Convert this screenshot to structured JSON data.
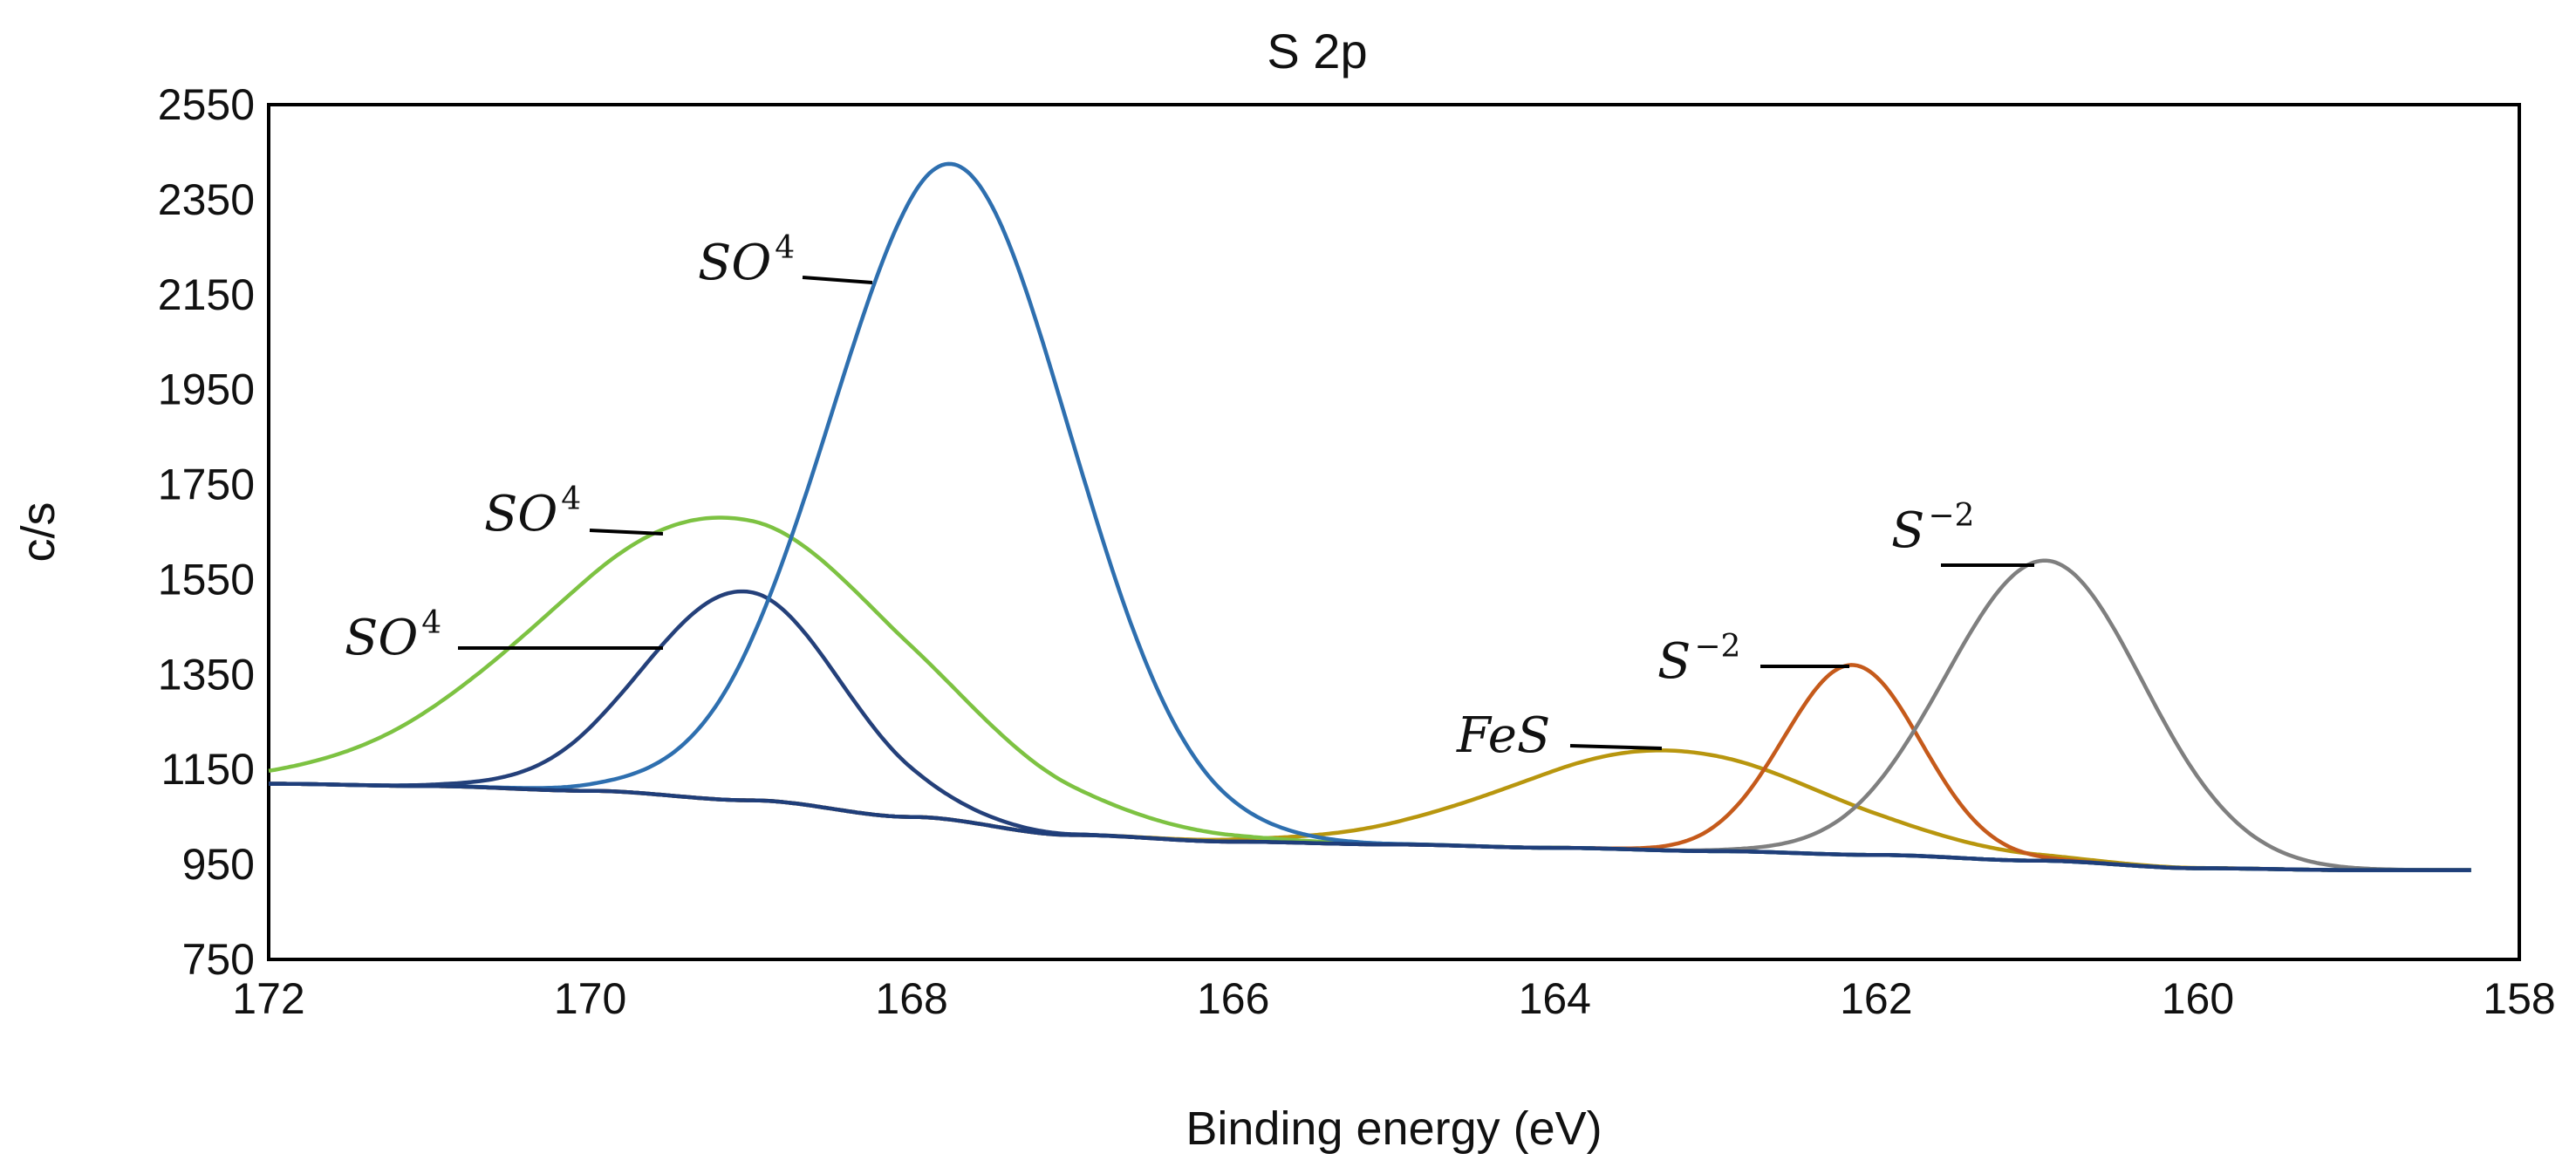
{
  "chart_data": {
    "type": "line",
    "title": "S 2p",
    "xlabel": "Binding energy (eV)",
    "ylabel": "c/s",
    "xlim": [
      172,
      158
    ],
    "ylim": [
      750,
      2550
    ],
    "x_ticks": [
      "172",
      "170",
      "168",
      "166",
      "164",
      "162",
      "160",
      "158"
    ],
    "y_ticks": [
      "750",
      "950",
      "1150",
      "1350",
      "1550",
      "1750",
      "1950",
      "2150",
      "2350",
      "2550"
    ],
    "x_reversed": true,
    "grid": false,
    "legend": "none",
    "background": {
      "points": [
        [
          172.0,
          1120
        ],
        [
          171.0,
          1115
        ],
        [
          170.0,
          1105
        ],
        [
          169.0,
          1085
        ],
        [
          168.0,
          1050
        ],
        [
          167.0,
          1012
        ],
        [
          166.0,
          998
        ],
        [
          165.0,
          992
        ],
        [
          164.0,
          985
        ],
        [
          163.0,
          978
        ],
        [
          162.0,
          970
        ],
        [
          161.0,
          958
        ],
        [
          160.0,
          942
        ],
        [
          159.0,
          938
        ],
        [
          158.4,
          938
        ]
      ]
    },
    "peaks": [
      {
        "label": "SO4",
        "center": 167.75,
        "peak": 2425,
        "fwhm": 1.75,
        "color": "#2E6FAF"
      },
      {
        "label": "SO4",
        "center": 169.15,
        "peak": 1680,
        "fwhm": 2.7,
        "color": "#7DC242"
      },
      {
        "label": "SO4",
        "center": 169.05,
        "peak": 1525,
        "fwhm": 1.45,
        "color": "#24407A"
      },
      {
        "label": "FeS",
        "center": 163.3,
        "peak": 1190,
        "fwhm": 2.3,
        "color": "#B8960E"
      },
      {
        "label": "S-2",
        "center": 162.15,
        "peak": 1370,
        "fwhm": 1.0,
        "color": "#C55A1B"
      },
      {
        "label": "S-2",
        "center": 160.95,
        "peak": 1590,
        "fwhm": 1.45,
        "color": "#7F7F7F"
      }
    ],
    "annotations": [
      {
        "base": "SO",
        "sup": "4",
        "target": "peak-so4-main"
      },
      {
        "base": "SO",
        "sup": "4",
        "target": "peak-so4-green"
      },
      {
        "base": "SO",
        "sup": "4",
        "target": "peak-so4-dark"
      },
      {
        "base": "FeS",
        "sup": "",
        "target": "peak-fes"
      },
      {
        "base": "S",
        "sup": "−2",
        "target": "peak-s2-orange"
      },
      {
        "base": "S",
        "sup": "−2",
        "target": "peak-s2-gray"
      }
    ]
  }
}
